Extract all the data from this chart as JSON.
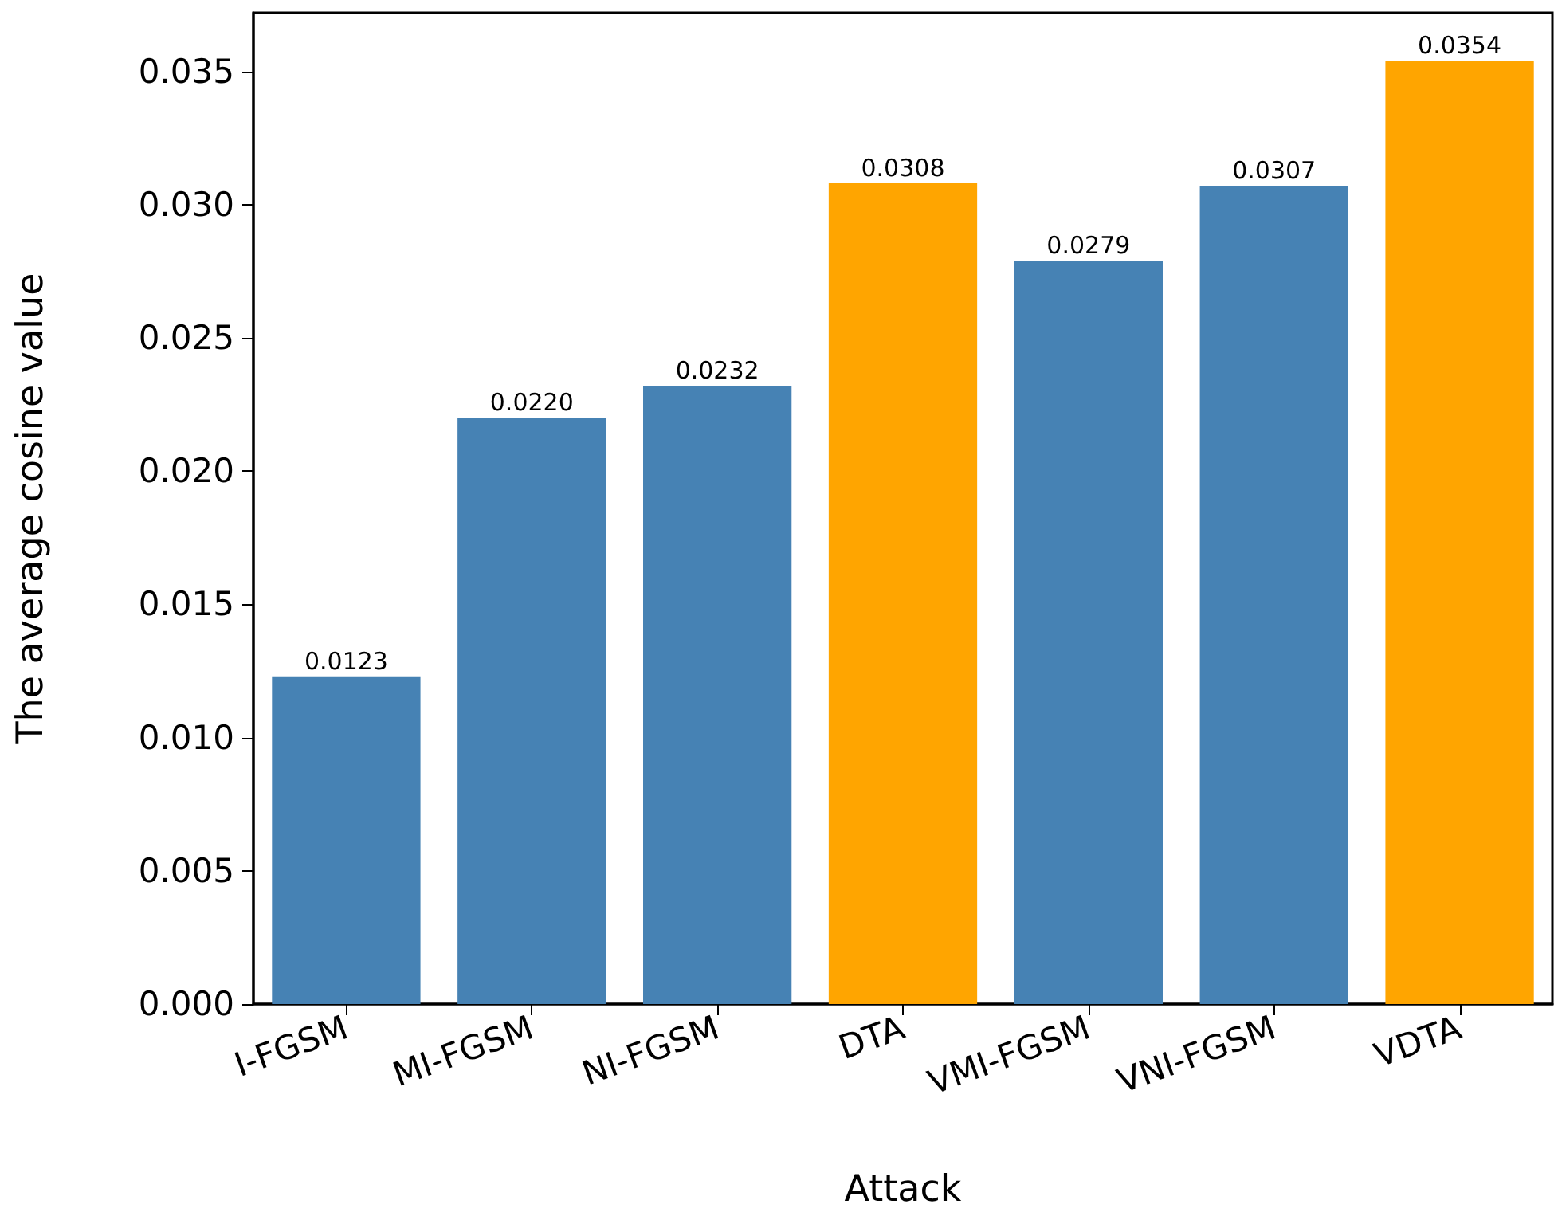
{
  "chart_data": {
    "type": "bar",
    "xlabel": "Attack",
    "ylabel": "The average cosine value",
    "categories": [
      "I-FGSM",
      "MI-FGSM",
      "NI-FGSM",
      "DTA",
      "VMI-FGSM",
      "VNI-FGSM",
      "VDTA"
    ],
    "values": [
      0.0123,
      0.022,
      0.0232,
      0.0308,
      0.0279,
      0.0307,
      0.0354
    ],
    "colors": [
      "#4682b4",
      "#4682b4",
      "#4682b4",
      "#ffa500",
      "#4682b4",
      "#4682b4",
      "#ffa500"
    ],
    "value_labels": [
      "0.0123",
      "0.0220",
      "0.0232",
      "0.0308",
      "0.0279",
      "0.0307",
      "0.0354"
    ],
    "ylim": [
      0,
      0.0372
    ],
    "yticks": [
      {
        "value": 0,
        "label": "0.000"
      },
      {
        "value": 0.005,
        "label": "0.005"
      },
      {
        "value": 0.01,
        "label": "0.010"
      },
      {
        "value": 0.015,
        "label": "0.015"
      },
      {
        "value": 0.02,
        "label": "0.020"
      },
      {
        "value": 0.025,
        "label": "0.025"
      },
      {
        "value": 0.03,
        "label": "0.030"
      },
      {
        "value": 0.035,
        "label": "0.035"
      }
    ],
    "grid": false
  }
}
